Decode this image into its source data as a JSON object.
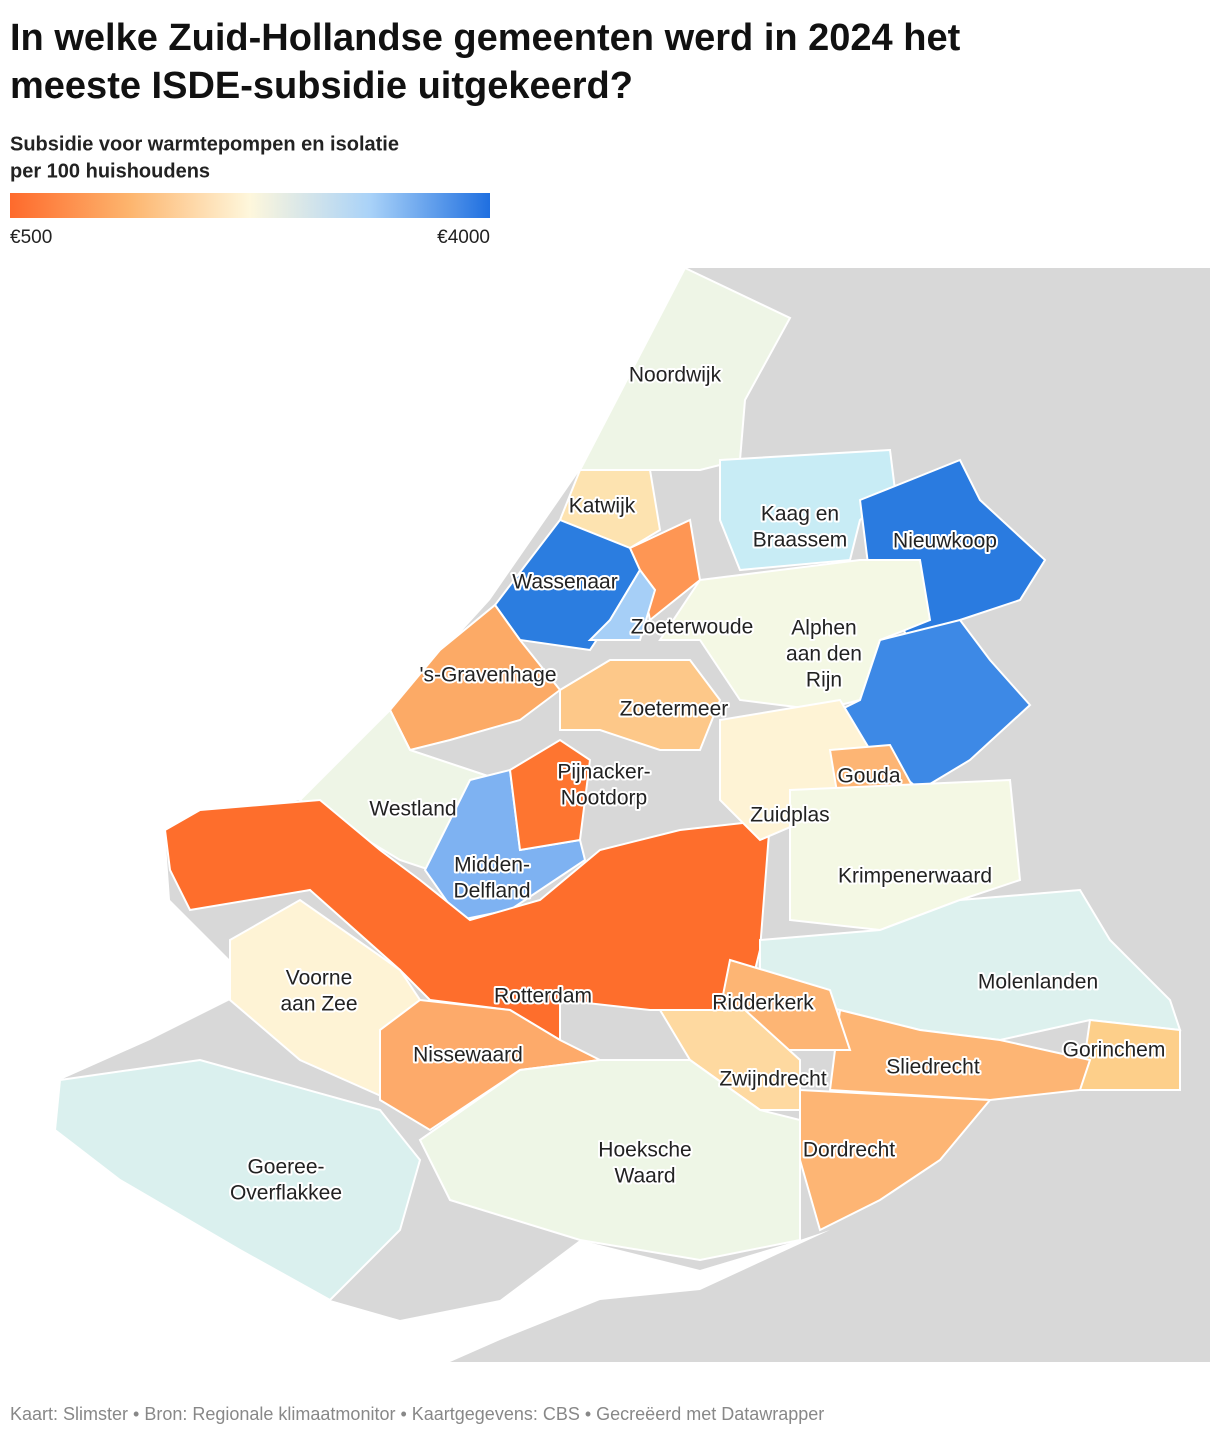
{
  "title": [
    "In welke Zuid-Hollandse gemeenten werd in 2024 het",
    "meeste ISDE-subsidie uitgekeerd?"
  ],
  "subtitle": [
    "Subsidie voor warmtepompen en isolatie",
    "per 100 huishoudens"
  ],
  "legend": {
    "colors": [
      "#fe6a2c",
      "#fdb56e",
      "#fef7dc",
      "#a9d2f8",
      "#1f6fe0"
    ],
    "min": {
      "value": 500,
      "label": "€500"
    },
    "max": {
      "value": 4000,
      "label": "€4000"
    }
  },
  "regions": [
    {
      "name": [
        "Noordwijk"
      ],
      "color": "#eef5e6"
    },
    {
      "name": [
        "Katwijk"
      ],
      "color": "#fde3b0"
    },
    {
      "name": [
        "Kaag en",
        "Braassem"
      ],
      "color": "#c8ecf5"
    },
    {
      "name": [
        "Nieuwkoop"
      ],
      "color": "#2a7be0"
    },
    {
      "name": [
        "Wassenaar"
      ],
      "color": "#2b7de0"
    },
    {
      "color": "#fe9654"
    },
    {
      "name": [
        "Zoeterwoude"
      ],
      "color": "#a6cff7"
    },
    {
      "name": [
        "Alphen",
        "aan den",
        "Rijn"
      ],
      "color": "#f4f8e4"
    },
    {
      "color": "#3d89e6"
    },
    {
      "name": [
        "'s-Gravenhage"
      ],
      "color": "#fcaa66"
    },
    {
      "name": [
        "Zoetermeer"
      ],
      "color": "#fdc889"
    },
    {
      "name": [
        "Westland"
      ],
      "color": "#eef5e6"
    },
    {
      "name": [
        "Midden-",
        "Delfland"
      ],
      "color": "#7eb2f2"
    },
    {
      "name": [
        "Pijnacker-",
        "Nootdorp"
      ],
      "color": "#fe7530"
    },
    {
      "name": [
        "Rotterdam"
      ],
      "color": "#fe6e2c"
    },
    {
      "name": [
        "Zuidplas"
      ],
      "color": "#fef3d5"
    },
    {
      "name": [
        "Gouda"
      ],
      "color": "#fdb574"
    },
    {
      "name": [
        "Krimpenerwaard"
      ],
      "color": "#f4f8e4"
    },
    {
      "name": [
        "Molenlanden"
      ],
      "color": "#ddf1ee"
    },
    {
      "name": [
        "Gorinchem"
      ],
      "color": "#fdcf8a"
    },
    {
      "name": [
        "Sliedrecht"
      ],
      "color": "#fdb574"
    },
    {
      "name": [
        "Dordrecht"
      ],
      "color": "#fdb574"
    },
    {
      "name": [
        "Ridderkerk"
      ],
      "color": "#fdb574"
    },
    {
      "name": [
        "Zwijndrecht"
      ],
      "color": "#fed9a0"
    },
    {
      "name": [
        "Voorne",
        "aan Zee"
      ],
      "color": "#fef3d5"
    },
    {
      "name": [
        "Nissewaard"
      ],
      "color": "#fdaa6a"
    },
    {
      "name": [
        "Hoeksche",
        "Waard"
      ],
      "color": "#eef6e6"
    },
    {
      "name": [
        "Goeree-",
        "Overflakkee"
      ],
      "color": "#daf0ee"
    }
  ],
  "footer": "Kaart: Slimster • Bron: Regionale klimaatmonitor • Kaartgegevens: CBS • Gecreëerd met Datawrapper"
}
